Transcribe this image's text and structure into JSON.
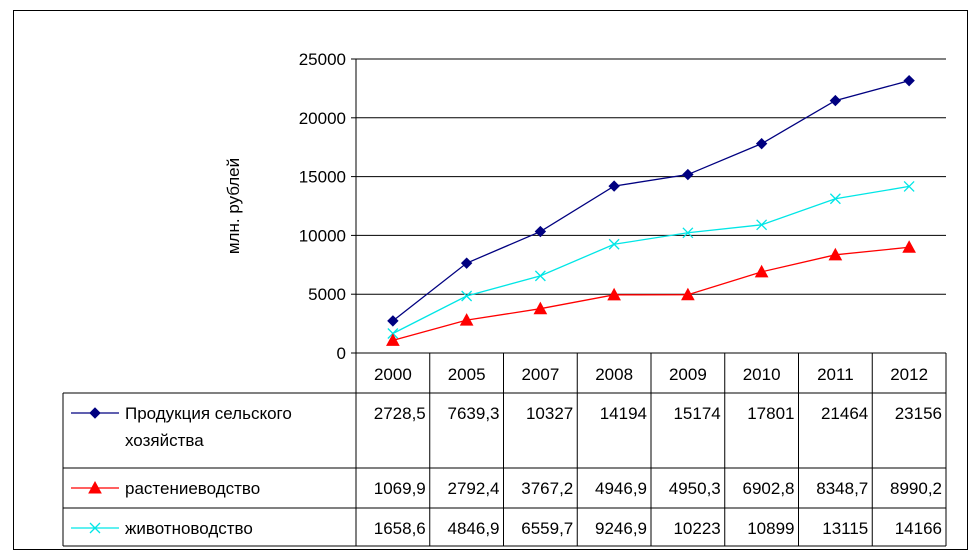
{
  "chart_data": {
    "type": "line",
    "title": "",
    "xlabel": "",
    "ylabel": "млн. рублей",
    "ylim": [
      0,
      25000
    ],
    "yticks": [
      0,
      5000,
      10000,
      15000,
      20000,
      25000
    ],
    "grid": true,
    "legend": "data-table-left",
    "categories": [
      "2000",
      "2005",
      "2007",
      "2008",
      "2009",
      "2010",
      "2011",
      "2012"
    ],
    "series": [
      {
        "name_lines": [
          "Продукция сельского",
          "хозяйства"
        ],
        "color": "#000080",
        "marker": "diamond",
        "values": [
          2728.5,
          7639.3,
          10327,
          14194,
          15174,
          17801,
          21464,
          23156
        ],
        "labels": [
          "2728,5",
          "7639,3",
          "10327",
          "14194",
          "15174",
          "17801",
          "21464",
          "23156"
        ]
      },
      {
        "name_lines": [
          "растениеводство"
        ],
        "color": "#ff0000",
        "marker": "triangle",
        "values": [
          1069.9,
          2792.4,
          3767.2,
          4946.9,
          4950.3,
          6902.8,
          8348.7,
          8990.2
        ],
        "labels": [
          "1069,9",
          "2792,4",
          "3767,2",
          "4946,9",
          "4950,3",
          "6902,8",
          "8348,7",
          "8990,2"
        ]
      },
      {
        "name_lines": [
          "животноводство"
        ],
        "color": "#00e6e6",
        "marker": "x",
        "values": [
          1658.6,
          4846.9,
          6559.7,
          9246.9,
          10223,
          10899,
          13115,
          14166
        ],
        "labels": [
          "1658,6",
          "4846,9",
          "6559,7",
          "9246,9",
          "10223",
          "10899",
          "13115",
          "14166"
        ]
      }
    ]
  }
}
